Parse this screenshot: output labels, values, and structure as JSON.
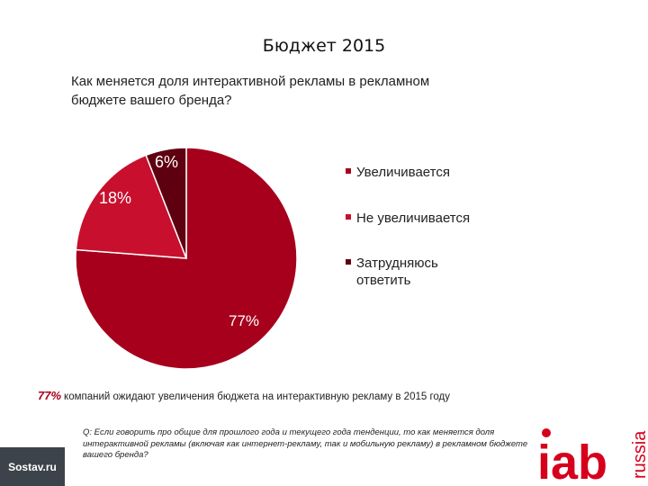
{
  "title": "Бюджет 2015",
  "question": "Как меняется доля интерактивной рекламы в рекламном бюджете вашего бренда?",
  "colors": {
    "increase": "#a6001c",
    "no_increase": "#c8102e",
    "undecided": "#5e0010",
    "accent": "#a6001c",
    "logo_red": "#d6001c"
  },
  "chart_data": {
    "type": "pie",
    "title": "",
    "slices": [
      {
        "label": "Увеличивается",
        "value": 77,
        "display": "77%"
      },
      {
        "label": "Не увеличивается",
        "value": 18,
        "display": "18%"
      },
      {
        "label": "Затрудняюсь ответить",
        "value": 6,
        "display": "6%"
      }
    ],
    "legend_placement": "right"
  },
  "legend": [
    "Увеличивается",
    "Не увеличивается",
    "Затрудняюсь ответить"
  ],
  "note": {
    "percent": "77%",
    "text": "компаний ожидают увеличения бюджета на интерактивную рекламу в 2015 году"
  },
  "footnote": "Q: Если говорить про общие для прошлого года и текущего года тенденции, то как меняется доля интерактивной рекламы (включая как интернет-рекламу, так и мобильную рекламу) в рекламном бюджете вашего бренда?",
  "branding": {
    "sostav": "Sostav.ru",
    "iab": "iab",
    "russia": "russia"
  }
}
